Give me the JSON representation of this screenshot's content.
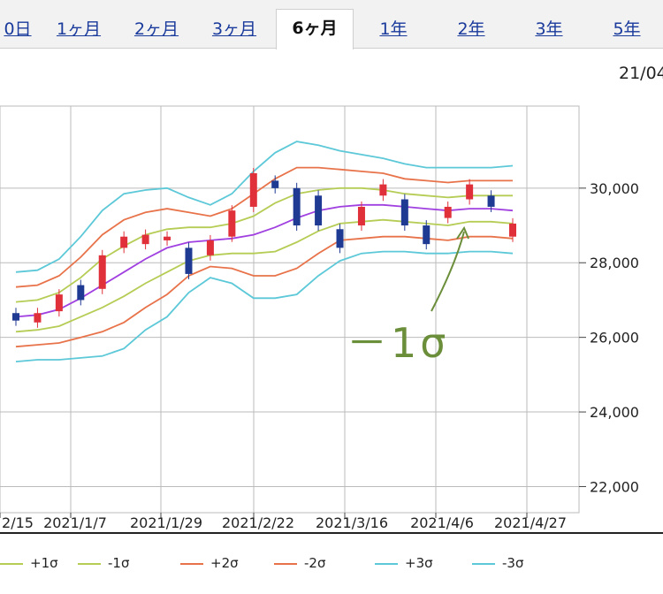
{
  "tabs": [
    {
      "label": "0日",
      "active": false
    },
    {
      "label": "1ヶ月",
      "active": false
    },
    {
      "label": "2ヶ月",
      "active": false
    },
    {
      "label": "3ヶ月",
      "active": false
    },
    {
      "label": "6ヶ月",
      "active": true
    },
    {
      "label": "1年",
      "active": false
    },
    {
      "label": "2年",
      "active": false
    },
    {
      "label": "3年",
      "active": false
    },
    {
      "label": "5年",
      "active": false
    }
  ],
  "date_label": "21/04",
  "annotation": "－1σ",
  "legend": [
    {
      "label": "+1σ",
      "color": "#b5cc55"
    },
    {
      "label": "-1σ",
      "color": "#b5cc55"
    },
    {
      "label": "+2σ",
      "color": "#e8734a"
    },
    {
      "label": "-2σ",
      "color": "#e8734a"
    },
    {
      "label": "+3σ",
      "color": "#5cc8d8"
    },
    {
      "label": "-3σ",
      "color": "#5cc8d8"
    }
  ],
  "colors": {
    "up": "#e0303a",
    "down": "#1f3a93",
    "middle": "#a040e0",
    "sigma1": "#b5cc55",
    "sigma2": "#e8734a",
    "sigma3": "#5cc8d8"
  },
  "chart_data": {
    "type": "candlestick",
    "x_ticks": [
      "2/15",
      "2021/1/7",
      "2021/1/29",
      "2021/2/22",
      "2021/3/16",
      "2021/4/6",
      "2021/4/27"
    ],
    "y_ticks": [
      22000,
      24000,
      26000,
      28000,
      30000
    ],
    "y_tick_labels": [
      "22,000",
      "24,000",
      "26,000",
      "28,000",
      "30,000"
    ],
    "ylim": [
      21300,
      32200
    ],
    "middle": [
      26550,
      26600,
      26750,
      27050,
      27400,
      27750,
      28100,
      28400,
      28550,
      28600,
      28650,
      28750,
      28950,
      29200,
      29400,
      29500,
      29550,
      29550,
      29500,
      29450,
      29400,
      29450,
      29450,
      29400
    ],
    "sigma1_upper": [
      26950,
      27000,
      27200,
      27600,
      28100,
      28450,
      28750,
      28900,
      28950,
      28950,
      29050,
      29250,
      29600,
      29850,
      29950,
      30000,
      30000,
      29950,
      29850,
      29800,
      29750,
      29800,
      29800,
      29800
    ],
    "sigma1_lower": [
      26150,
      26200,
      26300,
      26550,
      26800,
      27100,
      27450,
      27750,
      28050,
      28200,
      28250,
      28250,
      28300,
      28550,
      28850,
      29050,
      29100,
      29150,
      29100,
      29050,
      29000,
      29100,
      29100,
      29050
    ],
    "sigma2_upper": [
      27350,
      27400,
      27650,
      28150,
      28750,
      29150,
      29350,
      29450,
      29350,
      29250,
      29450,
      29850,
      30250,
      30550,
      30550,
      30500,
      30450,
      30400,
      30250,
      30200,
      30150,
      30200,
      30200,
      30200
    ],
    "sigma2_lower": [
      25750,
      25800,
      25850,
      26000,
      26150,
      26400,
      26800,
      27150,
      27650,
      27900,
      27850,
      27650,
      27650,
      27850,
      28250,
      28600,
      28650,
      28700,
      28700,
      28650,
      28600,
      28700,
      28700,
      28650
    ],
    "sigma3_upper": [
      27750,
      27800,
      28100,
      28700,
      29400,
      29850,
      29950,
      30000,
      29750,
      29550,
      29850,
      30450,
      30950,
      31250,
      31150,
      31000,
      30900,
      30800,
      30650,
      30550,
      30550,
      30550,
      30550,
      30600
    ],
    "sigma3_lower": [
      25350,
      25400,
      25400,
      25450,
      25500,
      25700,
      26200,
      26550,
      27200,
      27600,
      27450,
      27050,
      27050,
      27150,
      27650,
      28050,
      28250,
      28300,
      28300,
      28250,
      28250,
      28300,
      28300,
      28250
    ],
    "candles": [
      {
        "o": 26650,
        "c": 26450
      },
      {
        "o": 26400,
        "c": 26650
      },
      {
        "o": 26700,
        "c": 27150
      },
      {
        "o": 27400,
        "c": 27000
      },
      {
        "o": 27300,
        "c": 28200
      },
      {
        "o": 28400,
        "c": 28700
      },
      {
        "o": 28500,
        "c": 28750
      },
      {
        "o": 28600,
        "c": 28700
      },
      {
        "o": 28400,
        "c": 27700
      },
      {
        "o": 28200,
        "c": 28600
      },
      {
        "o": 28700,
        "c": 29400
      },
      {
        "o": 29500,
        "c": 30400
      },
      {
        "o": 30200,
        "c": 30000
      },
      {
        "o": 30000,
        "c": 29000
      },
      {
        "o": 29800,
        "c": 29000
      },
      {
        "o": 28900,
        "c": 28400
      },
      {
        "o": 29000,
        "c": 29500
      },
      {
        "o": 29800,
        "c": 30100
      },
      {
        "o": 29700,
        "c": 29000
      },
      {
        "o": 29000,
        "c": 28500
      },
      {
        "o": 29200,
        "c": 29500
      },
      {
        "o": 29700,
        "c": 30100
      },
      {
        "o": 29800,
        "c": 29500
      },
      {
        "o": 28700,
        "c": 29050
      }
    ]
  }
}
